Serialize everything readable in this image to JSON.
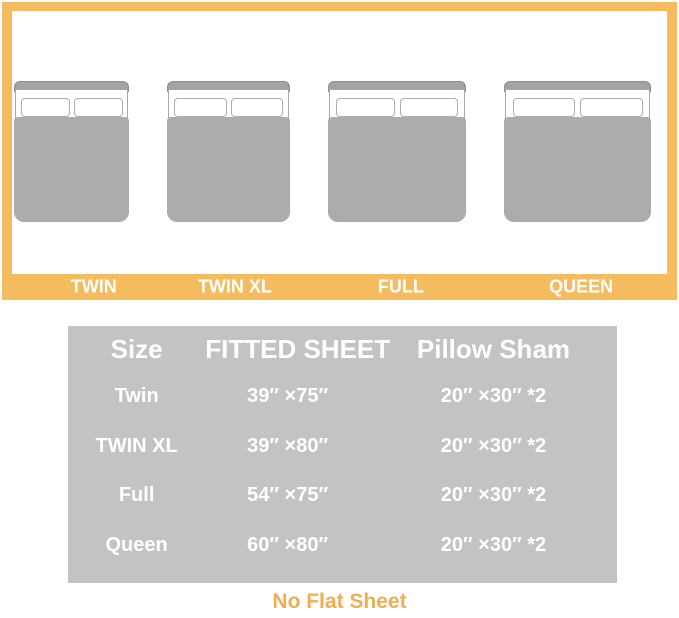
{
  "colors": {
    "frame_amber": "#F5BC5F",
    "table_gray": "#C3C3C3",
    "bed_gray": "#ACACAC",
    "table_text": "#FFFFFF",
    "note_amber": "#EFAE52"
  },
  "chart_data": {
    "type": "table",
    "title": "",
    "columns": [
      "Size",
      "FITTED SHEET",
      "Pillow Sham"
    ],
    "rows": [
      [
        "Twin",
        "39″ ×75″",
        "20″ ×30″ *2"
      ],
      [
        "TWIN XL",
        "39″ ×80″",
        "20″ ×30″ *2"
      ],
      [
        "Full",
        "54″ ×75″",
        "20″ ×30″ *2"
      ],
      [
        "Queen",
        "60″ ×80″",
        "20″ ×30″ *2"
      ]
    ],
    "bed_labels": [
      "TWIN",
      "TWIN XL",
      "FULL",
      "QUEEN"
    ],
    "note": "No Flat Sheet",
    "layout": {
      "grid": false,
      "legend": "none"
    }
  }
}
